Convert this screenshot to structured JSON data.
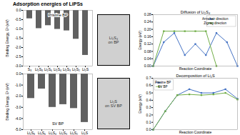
{
  "title": "Adsorption energies of LiPSs",
  "chart_data": [
    {
      "type": "bar",
      "title": "Pristine BP",
      "categories": [
        "S₈",
        "Li₂S₈",
        "Li₂S₆",
        "Li₂S₄",
        "Li₂S₃",
        "Li₂S₂",
        "Li₂S"
      ],
      "values": [
        -0.45,
        -0.98,
        -0.82,
        -1.02,
        -1.1,
        -1.55,
        -2.42
      ],
      "color": "#606060",
      "ylabel": "Binding Energy, Eᵇ (eV)",
      "ylim": [
        -3.0,
        0.0
      ],
      "yticks": [
        {
          "value": -3.0,
          "label": "-3.0"
        },
        -2.5,
        {
          "value": -2.0,
          "label": "-2.0"
        },
        -1.5,
        {
          "value": -1.0,
          "label": "-1.0"
        },
        -0.5,
        {
          "value": 0.0,
          "label": "0.0"
        }
      ],
      "grid": false
    },
    {
      "type": "placeholder",
      "annotations": [
        "Li₂S₄",
        "on BP"
      ]
    },
    {
      "type": "line",
      "title": "Diffusion of Li₂S₄",
      "xlabel": "Reaction Coordinate",
      "ylabel": "Energy (eV)",
      "series": [
        {
          "name": "Armchair direction",
          "color": "#4472c4",
          "marker": "square",
          "x": [
            0,
            1,
            2,
            3,
            4,
            5,
            6,
            7,
            8
          ],
          "values": [
            0.0,
            0.13,
            0.18,
            0.06,
            0.12,
            0.06,
            0.18,
            0.13,
            0.0
          ]
        },
        {
          "name": "Zigzag direction",
          "color": "#70ad47",
          "marker": "square",
          "x": [
            0,
            1,
            2,
            3,
            4,
            5,
            6
          ],
          "values": [
            0.0,
            0.19,
            0.19,
            0.19,
            0.19,
            0.19,
            0.0
          ]
        }
      ],
      "xlim": [
        0,
        8
      ],
      "ylim": [
        0.0,
        0.28
      ],
      "yticks": [
        {
          "value": 0.0,
          "label": "0.00"
        },
        0.04,
        0.08,
        0.12,
        0.16,
        {
          "value": 0.2,
          "label": "0.20"
        },
        0.24,
        0.28
      ],
      "tick_labels": "y",
      "legend": "upper right",
      "grid": false
    },
    {
      "type": "bar",
      "title": "SV BP",
      "categories": [
        "Li₂S₈",
        "Li₂S₆",
        "Li₂S₄",
        "Li₂S₃",
        "Li₂S₂",
        "Li₂S"
      ],
      "values": [
        -2.2,
        -1.35,
        -3.0,
        -2.75,
        -3.1,
        -4.35
      ],
      "color": "#606060",
      "ylabel": "Binding Energy, Eᵇ (eV)",
      "ylim": [
        -5.0,
        0.0
      ],
      "yticks": [
        {
          "value": -5.0,
          "label": "-5.0"
        },
        {
          "value": -4.0,
          "label": "-4.0"
        },
        {
          "value": -3.0,
          "label": "-3.0"
        },
        {
          "value": -2.0,
          "label": "-2.0"
        },
        {
          "value": -1.0,
          "label": "-1.0"
        },
        {
          "value": 0.0,
          "label": "0.0"
        }
      ],
      "grid": false
    },
    {
      "type": "placeholder",
      "annotations": [
        "Li₂S",
        "on SV BP"
      ]
    },
    {
      "type": "line",
      "title": "Decomposition of Li₂S",
      "xlabel": "Reaction Coordinate",
      "ylabel": "Energy (eV)",
      "series": [
        {
          "name": "Pristine BP",
          "color": "#4472c4",
          "marker": "square",
          "x": [
            0,
            1,
            2,
            3,
            4,
            5,
            6,
            7
          ],
          "values": [
            0.0,
            0.25,
            0.47,
            0.55,
            0.5,
            0.5,
            0.55,
            0.42
          ]
        },
        {
          "name": "SV BP",
          "color": "#70ad47",
          "marker": "square",
          "x": [
            0,
            1,
            2,
            3,
            4,
            5,
            6,
            7
          ],
          "values": [
            0.0,
            0.25,
            0.47,
            0.48,
            0.47,
            0.48,
            0.5,
            0.41
          ]
        }
      ],
      "xlim": [
        0,
        7
      ],
      "ylim": [
        0.0,
        0.7
      ],
      "yticks": [
        {
          "value": 0.0,
          "label": "0.0"
        },
        0.1,
        0.2,
        0.3,
        0.4,
        0.5,
        0.6,
        0.7
      ],
      "tick_labels": "y",
      "legend": "upper left",
      "grid": false
    }
  ]
}
